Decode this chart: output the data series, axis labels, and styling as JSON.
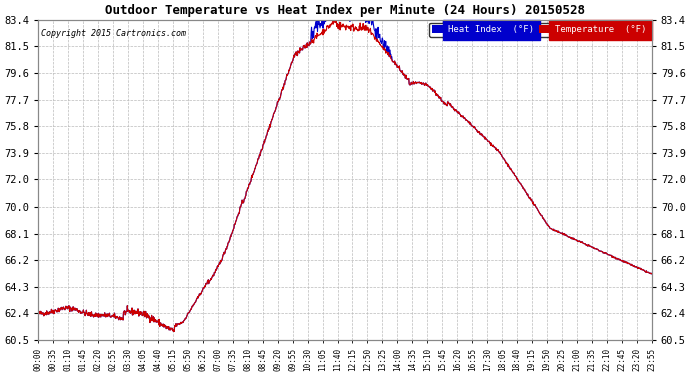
{
  "title": "Outdoor Temperature vs Heat Index per Minute (24 Hours) 20150528",
  "copyright": "Copyright 2015 Cartronics.com",
  "background_color": "#ffffff",
  "plot_bg_color": "#ffffff",
  "grid_color": "#bbbbbb",
  "temp_color": "#cc0000",
  "heat_color": "#0000cc",
  "ylim": [
    60.5,
    83.4
  ],
  "yticks": [
    60.5,
    62.4,
    64.3,
    66.2,
    68.1,
    70.0,
    72.0,
    73.9,
    75.8,
    77.7,
    79.6,
    81.5,
    83.4
  ],
  "x_labels": [
    "00:00",
    "00:35",
    "01:10",
    "01:45",
    "02:20",
    "02:55",
    "03:30",
    "04:05",
    "04:40",
    "05:15",
    "05:50",
    "06:25",
    "07:00",
    "07:35",
    "08:10",
    "08:45",
    "09:20",
    "09:55",
    "10:30",
    "11:05",
    "11:40",
    "12:15",
    "12:50",
    "13:25",
    "14:00",
    "14:35",
    "15:10",
    "15:45",
    "16:20",
    "16:55",
    "17:30",
    "18:05",
    "18:40",
    "19:15",
    "19:50",
    "20:25",
    "21:00",
    "21:35",
    "22:10",
    "22:45",
    "23:20",
    "23:55"
  ],
  "n_minutes": 1440
}
